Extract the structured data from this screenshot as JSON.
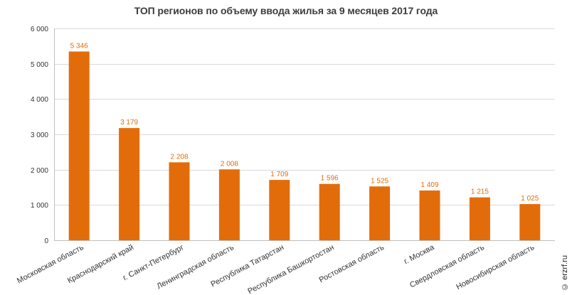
{
  "title": "ТОП регионов по объему ввода жилья за 9 месяцев 2017 года",
  "watermark": "© erzrf.ru",
  "colors": {
    "bar": "#e36c0a",
    "data_label": "#e36c0a",
    "grid": "#d9d9d9",
    "axis": "#bfbfbf"
  },
  "chart_data": {
    "type": "bar",
    "title": "ТОП регионов по объему ввода жилья за 9 месяцев 2017 года",
    "xlabel": "",
    "ylabel": "",
    "ylim": [
      0,
      6000
    ],
    "yticks": [
      0,
      1000,
      2000,
      3000,
      4000,
      5000,
      6000
    ],
    "ytick_labels": [
      "0",
      "1 000",
      "2 000",
      "3 000",
      "4 000",
      "5 000",
      "6 000"
    ],
    "grid": true,
    "legend": "none",
    "categories": [
      "Московская область",
      "Краснодарский край",
      "г. Санкт-Петербург",
      "Ленинградская область",
      "Республика Татарстан",
      "Республика Башкортостан",
      "Ростовская область",
      "г. Москва",
      "Свердловская область",
      "Новосибирская область"
    ],
    "values": [
      5346,
      3179,
      2208,
      2008,
      1709,
      1596,
      1525,
      1409,
      1215,
      1025
    ],
    "value_labels": [
      "5 346",
      "3 179",
      "2 208",
      "2 008",
      "1 709",
      "1 596",
      "1 525",
      "1 409",
      "1 215",
      "1 025"
    ]
  }
}
